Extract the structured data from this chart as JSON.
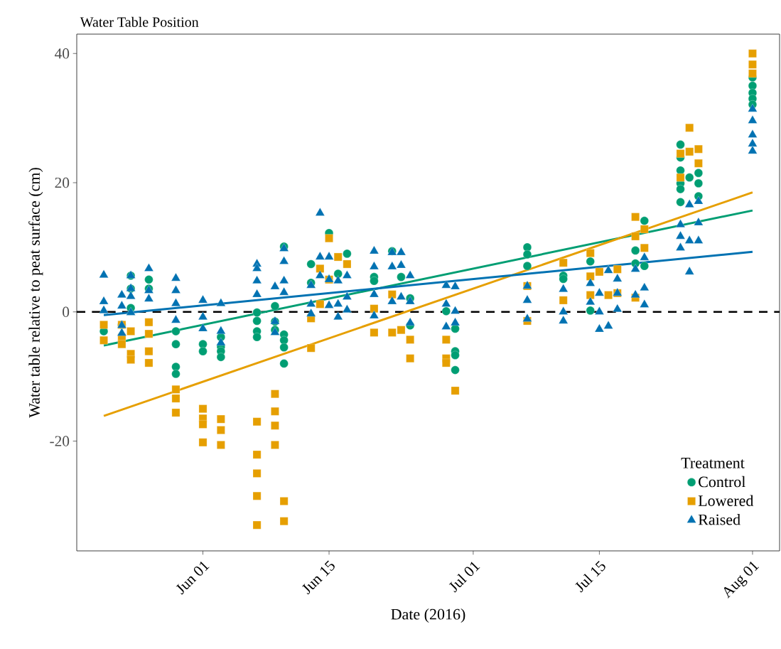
{
  "chart_data": {
    "type": "scatter",
    "title": "Water Table Position",
    "xlabel": "Date (2016)",
    "ylabel": "Water table relative to peat surface (cm)",
    "legend_title": "Treatment",
    "legend": "bottom right",
    "grid": false,
    "xlim": [
      "2016-05-18",
      "2016-08-04"
    ],
    "ylim": [
      -37,
      43
    ],
    "xticks": [
      {
        "value": "2016-06-01",
        "label": "Jun 01"
      },
      {
        "value": "2016-06-15",
        "label": "Jun 15"
      },
      {
        "value": "2016-07-01",
        "label": "Jul 01"
      },
      {
        "value": "2016-07-15",
        "label": "Jul 15"
      },
      {
        "value": "2016-08-01",
        "label": "Aug 01"
      }
    ],
    "yticks": [
      -20,
      0,
      20,
      40
    ],
    "ref_lines": [
      {
        "axis": "y",
        "value": 0,
        "color": "#000000",
        "line_style": "dashed"
      }
    ],
    "series": [
      {
        "name": "Control",
        "marker": "circle",
        "color": "#009E73",
        "x": [
          "2016-05-21",
          "2016-05-23",
          "2016-05-24",
          "2016-05-24",
          "2016-05-24",
          "2016-05-26",
          "2016-05-26",
          "2016-05-29",
          "2016-05-29",
          "2016-05-29",
          "2016-05-29",
          "2016-06-01",
          "2016-06-01",
          "2016-06-03",
          "2016-06-03",
          "2016-06-03",
          "2016-06-03",
          "2016-06-07",
          "2016-06-07",
          "2016-06-07",
          "2016-06-07",
          "2016-06-09",
          "2016-06-09",
          "2016-06-09",
          "2016-06-10",
          "2016-06-10",
          "2016-06-10",
          "2016-06-10",
          "2016-06-10",
          "2016-06-13",
          "2016-06-13",
          "2016-06-15",
          "2016-06-16",
          "2016-06-17",
          "2016-06-20",
          "2016-06-20",
          "2016-06-22",
          "2016-06-23",
          "2016-06-24",
          "2016-06-24",
          "2016-06-28",
          "2016-06-29",
          "2016-06-29",
          "2016-06-29",
          "2016-06-29",
          "2016-07-07",
          "2016-07-07",
          "2016-07-07",
          "2016-07-11",
          "2016-07-11",
          "2016-07-14",
          "2016-07-14",
          "2016-07-19",
          "2016-07-19",
          "2016-07-20",
          "2016-07-20",
          "2016-07-24",
          "2016-07-24",
          "2016-07-24",
          "2016-07-24",
          "2016-07-24",
          "2016-07-24",
          "2016-07-25",
          "2016-07-26",
          "2016-07-26",
          "2016-07-26",
          "2016-08-01",
          "2016-08-01",
          "2016-08-01",
          "2016-08-01",
          "2016-08-01"
        ],
        "values": [
          -3.0,
          -2.0,
          5.6,
          3.6,
          0.6,
          5.0,
          3.6,
          -3.0,
          -5.0,
          -8.5,
          -9.6,
          -5.0,
          -6.1,
          -3.9,
          -5.4,
          -6.1,
          -7.0,
          -0.1,
          -1.4,
          -3.0,
          -3.9,
          0.9,
          -1.5,
          -2.8,
          10.1,
          -3.5,
          -4.4,
          -5.5,
          -8.0,
          7.4,
          4.5,
          12.2,
          5.9,
          9.0,
          5.4,
          4.8,
          9.4,
          5.4,
          2.1,
          -2.1,
          0.1,
          -2.6,
          -6.1,
          -6.7,
          -9.0,
          10.0,
          8.9,
          7.1,
          5.6,
          5.1,
          7.8,
          0.2,
          9.5,
          7.5,
          14.1,
          7.1,
          25.9,
          23.9,
          21.9,
          19.9,
          19.0,
          17.0,
          20.8,
          21.5,
          19.9,
          17.9,
          36.3,
          35.0,
          33.9,
          33.0,
          32.1
        ]
      },
      {
        "name": "Lowered",
        "marker": "square",
        "color": "#E69F00",
        "x": [
          "2016-05-21",
          "2016-05-21",
          "2016-05-23",
          "2016-05-23",
          "2016-05-23",
          "2016-05-24",
          "2016-05-24",
          "2016-05-24",
          "2016-05-26",
          "2016-05-26",
          "2016-05-26",
          "2016-05-26",
          "2016-05-29",
          "2016-05-29",
          "2016-05-29",
          "2016-06-01",
          "2016-06-01",
          "2016-06-01",
          "2016-06-01",
          "2016-06-03",
          "2016-06-03",
          "2016-06-03",
          "2016-06-07",
          "2016-06-07",
          "2016-06-07",
          "2016-06-07",
          "2016-06-07",
          "2016-06-09",
          "2016-06-09",
          "2016-06-09",
          "2016-06-09",
          "2016-06-10",
          "2016-06-10",
          "2016-06-13",
          "2016-06-13",
          "2016-06-14",
          "2016-06-14",
          "2016-06-15",
          "2016-06-15",
          "2016-06-16",
          "2016-06-17",
          "2016-06-20",
          "2016-06-20",
          "2016-06-22",
          "2016-06-22",
          "2016-06-23",
          "2016-06-24",
          "2016-06-24",
          "2016-06-28",
          "2016-06-28",
          "2016-06-28",
          "2016-06-29",
          "2016-07-07",
          "2016-07-07",
          "2016-07-11",
          "2016-07-11",
          "2016-07-14",
          "2016-07-14",
          "2016-07-14",
          "2016-07-15",
          "2016-07-16",
          "2016-07-17",
          "2016-07-17",
          "2016-07-19",
          "2016-07-19",
          "2016-07-19",
          "2016-07-20",
          "2016-07-20",
          "2016-07-24",
          "2016-07-24",
          "2016-07-25",
          "2016-07-25",
          "2016-07-26",
          "2016-07-26",
          "2016-08-01",
          "2016-08-01",
          "2016-08-01"
        ],
        "values": [
          -2.0,
          -4.4,
          -2.0,
          -4.0,
          -5.0,
          -3.0,
          -6.5,
          -7.4,
          -1.6,
          -3.4,
          -6.1,
          -7.9,
          -12.0,
          -13.4,
          -15.6,
          -15.0,
          -16.5,
          -17.4,
          -20.2,
          -16.6,
          -18.3,
          -20.6,
          -17.0,
          -22.1,
          -25.0,
          -28.5,
          -33.0,
          -12.7,
          -15.4,
          -17.6,
          -20.6,
          -29.3,
          -32.4,
          -5.6,
          -1.0,
          1.2,
          6.7,
          11.4,
          5.0,
          8.5,
          7.4,
          -3.2,
          0.5,
          -3.2,
          2.7,
          -2.8,
          -7.2,
          -4.3,
          -7.2,
          -4.3,
          -7.9,
          -12.2,
          4.0,
          -1.4,
          7.6,
          1.8,
          9.1,
          5.5,
          2.6,
          6.2,
          2.6,
          6.6,
          2.9,
          14.7,
          11.7,
          2.2,
          12.8,
          9.9,
          24.5,
          20.8,
          28.5,
          24.8,
          25.2,
          23.0,
          40.0,
          38.3,
          36.9
        ]
      },
      {
        "name": "Raised",
        "marker": "triangle",
        "color": "#0072B2",
        "x": [
          "2016-05-21",
          "2016-05-21",
          "2016-05-21",
          "2016-05-23",
          "2016-05-23",
          "2016-05-23",
          "2016-05-23",
          "2016-05-24",
          "2016-05-24",
          "2016-05-24",
          "2016-05-24",
          "2016-05-26",
          "2016-05-26",
          "2016-05-26",
          "2016-05-29",
          "2016-05-29",
          "2016-05-29",
          "2016-05-29",
          "2016-06-01",
          "2016-06-01",
          "2016-06-01",
          "2016-06-03",
          "2016-06-03",
          "2016-06-03",
          "2016-06-07",
          "2016-06-07",
          "2016-06-07",
          "2016-06-07",
          "2016-06-09",
          "2016-06-09",
          "2016-06-09",
          "2016-06-10",
          "2016-06-10",
          "2016-06-10",
          "2016-06-10",
          "2016-06-13",
          "2016-06-13",
          "2016-06-13",
          "2016-06-14",
          "2016-06-14",
          "2016-06-14",
          "2016-06-15",
          "2016-06-15",
          "2016-06-15",
          "2016-06-16",
          "2016-06-16",
          "2016-06-16",
          "2016-06-17",
          "2016-06-17",
          "2016-06-17",
          "2016-06-20",
          "2016-06-20",
          "2016-06-20",
          "2016-06-20",
          "2016-06-22",
          "2016-06-22",
          "2016-06-22",
          "2016-06-23",
          "2016-06-23",
          "2016-06-23",
          "2016-06-24",
          "2016-06-24",
          "2016-06-24",
          "2016-06-28",
          "2016-06-28",
          "2016-06-28",
          "2016-06-29",
          "2016-06-29",
          "2016-06-29",
          "2016-07-07",
          "2016-07-07",
          "2016-07-07",
          "2016-07-11",
          "2016-07-11",
          "2016-07-11",
          "2016-07-14",
          "2016-07-14",
          "2016-07-15",
          "2016-07-15",
          "2016-07-15",
          "2016-07-16",
          "2016-07-16",
          "2016-07-17",
          "2016-07-17",
          "2016-07-17",
          "2016-07-19",
          "2016-07-19",
          "2016-07-20",
          "2016-07-20",
          "2016-07-20",
          "2016-07-24",
          "2016-07-24",
          "2016-07-24",
          "2016-07-25",
          "2016-07-25",
          "2016-07-25",
          "2016-07-26",
          "2016-07-26",
          "2016-07-26",
          "2016-08-01",
          "2016-08-01",
          "2016-08-01",
          "2016-08-01",
          "2016-08-01"
        ],
        "values": [
          5.7,
          1.6,
          0.2,
          2.6,
          0.9,
          -2.1,
          -3.3,
          5.6,
          3.6,
          2.4,
          -0.1,
          6.7,
          3.3,
          2.0,
          5.2,
          3.3,
          1.3,
          -1.3,
          1.8,
          -0.8,
          -2.6,
          1.3,
          -3.0,
          -4.8,
          7.4,
          6.7,
          4.8,
          2.7,
          3.9,
          -1.5,
          -3.2,
          9.8,
          7.8,
          4.8,
          3.0,
          4.1,
          1.2,
          -0.3,
          15.3,
          8.5,
          5.6,
          8.5,
          5.0,
          1.0,
          4.8,
          1.2,
          -0.8,
          5.6,
          2.3,
          0.3,
          9.4,
          7.0,
          2.7,
          -0.6,
          9.2,
          7.0,
          1.6,
          9.2,
          7.2,
          2.3,
          5.6,
          1.6,
          -1.7,
          4.1,
          1.2,
          -2.3,
          3.9,
          0.1,
          -1.7,
          4.0,
          1.8,
          -1.1,
          3.5,
          0.0,
          -1.4,
          4.4,
          1.5,
          2.9,
          0.0,
          -2.7,
          6.4,
          -2.2,
          5.1,
          2.9,
          0.4,
          6.6,
          2.6,
          8.4,
          3.7,
          1.1,
          13.5,
          11.7,
          9.9,
          16.6,
          11.0,
          6.2,
          17.1,
          13.8,
          11.0,
          31.4,
          29.6,
          27.4,
          26.0,
          24.9
        ]
      },
      {
        "type": "line",
        "marker": "none",
        "color": "#009E73",
        "x": [
          "2016-05-21",
          "2016-08-01"
        ],
        "values": [
          -5.2,
          15.7
        ]
      },
      {
        "type": "line",
        "marker": "none",
        "color": "#E69F00",
        "x": [
          "2016-05-21",
          "2016-08-01"
        ],
        "values": [
          -16.1,
          18.5
        ]
      },
      {
        "type": "line",
        "marker": "none",
        "color": "#0072B2",
        "x": [
          "2016-05-21",
          "2016-08-01"
        ],
        "values": [
          -0.5,
          9.3
        ]
      }
    ]
  }
}
